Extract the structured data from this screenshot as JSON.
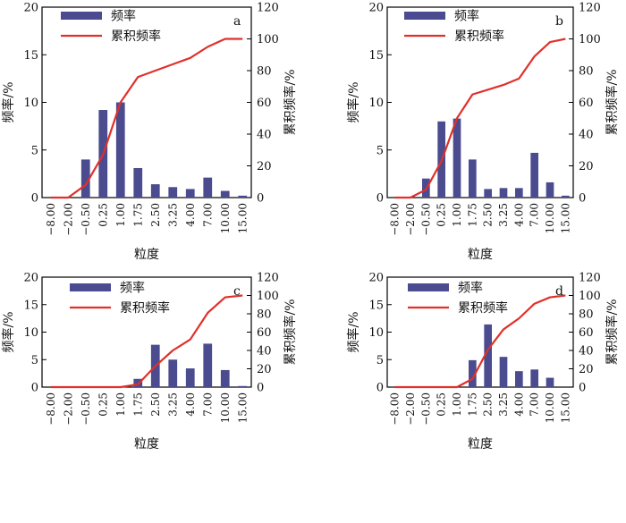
{
  "colors": {
    "bar": "#4b4b8f",
    "line": "#e0302a",
    "axis": "#000000"
  },
  "chart_data": [
    {
      "type": "bar",
      "panel_label": "a",
      "categories": [
        "−8.00",
        "−2.00",
        "−0.50",
        "0.25",
        "1.00",
        "1.75",
        "2.50",
        "3.25",
        "4.00",
        "7.00",
        "10.00",
        "15.00"
      ],
      "series": [
        {
          "name": "频率",
          "type": "bar",
          "axis": "left",
          "values": [
            0,
            0,
            4.0,
            9.2,
            10.0,
            3.1,
            1.4,
            1.1,
            0.9,
            2.1,
            0.7,
            0.2
          ]
        },
        {
          "name": "累积频率",
          "type": "line",
          "axis": "right",
          "values": [
            0,
            0,
            8,
            27,
            60,
            76,
            80,
            84,
            88,
            95,
            100,
            100
          ]
        }
      ],
      "xlabel": "粒度",
      "ylabel": "频率/%",
      "y2label": "累积频率/%",
      "ylim": [
        0,
        20
      ],
      "yticks": [
        0,
        5,
        10,
        15,
        20
      ],
      "y2lim": [
        0,
        120
      ],
      "y2ticks": [
        0,
        20,
        40,
        60,
        80,
        100,
        120
      ],
      "legend": "top-left"
    },
    {
      "type": "bar",
      "panel_label": "b",
      "categories": [
        "−8.00",
        "−2.00",
        "−0.50",
        "0.25",
        "1.00",
        "1.75",
        "2.50",
        "3.25",
        "4.00",
        "7.00",
        "10.00",
        "15.00"
      ],
      "series": [
        {
          "name": "频率",
          "type": "bar",
          "axis": "left",
          "values": [
            0,
            0,
            2.0,
            8.0,
            8.3,
            4.0,
            0.9,
            1.0,
            1.0,
            4.7,
            1.6,
            0.2
          ]
        },
        {
          "name": "累积频率",
          "type": "line",
          "axis": "right",
          "values": [
            0,
            0,
            5,
            23,
            50,
            65,
            68,
            71,
            75,
            89,
            98,
            100
          ]
        }
      ],
      "xlabel": "粒度",
      "ylabel": "频率/%",
      "y2label": "累积频率/%",
      "ylim": [
        0,
        20
      ],
      "yticks": [
        0,
        5,
        10,
        15,
        20
      ],
      "y2lim": [
        0,
        120
      ],
      "y2ticks": [
        0,
        20,
        40,
        60,
        80,
        100,
        120
      ],
      "legend": "top-left"
    },
    {
      "type": "bar",
      "panel_label": "c",
      "categories": [
        "−8.00",
        "−2.00",
        "−0.50",
        "0.25",
        "1.00",
        "1.75",
        "2.50",
        "3.25",
        "4.00",
        "7.00",
        "10.00",
        "15.00"
      ],
      "series": [
        {
          "name": "频率",
          "type": "bar",
          "axis": "left",
          "values": [
            0,
            0,
            0,
            0,
            0,
            1.5,
            7.7,
            5.0,
            3.4,
            7.9,
            3.1,
            0.2
          ]
        },
        {
          "name": "累积频率",
          "type": "line",
          "axis": "right",
          "values": [
            0,
            0,
            0,
            0,
            0,
            3,
            23,
            40,
            52,
            81,
            98,
            100
          ]
        }
      ],
      "xlabel": "粒度",
      "ylabel": "频率/%",
      "y2label": "累积频率/%",
      "ylim": [
        0,
        20
      ],
      "yticks": [
        0,
        5,
        10,
        15,
        20
      ],
      "y2lim": [
        0,
        120
      ],
      "y2ticks": [
        0,
        20,
        40,
        60,
        80,
        100,
        120
      ],
      "legend": "top-center"
    },
    {
      "type": "bar",
      "panel_label": "d",
      "categories": [
        "−8.00",
        "−2.00",
        "−0.50",
        "0.25",
        "1.00",
        "1.75",
        "2.50",
        "3.25",
        "4.00",
        "7.00",
        "10.00",
        "15.00"
      ],
      "series": [
        {
          "name": "频率",
          "type": "bar",
          "axis": "left",
          "values": [
            0,
            0,
            0,
            0,
            0,
            4.9,
            11.4,
            5.5,
            2.9,
            3.2,
            1.7,
            0
          ]
        },
        {
          "name": "累积频率",
          "type": "line",
          "axis": "right",
          "values": [
            0,
            0,
            0,
            0,
            0,
            9,
            41,
            63,
            75,
            91,
            98,
            100
          ]
        }
      ],
      "xlabel": "粒度",
      "ylabel": "频率/%",
      "y2label": "累积频率/%",
      "ylim": [
        0,
        20
      ],
      "yticks": [
        0,
        5,
        10,
        15,
        20
      ],
      "y2lim": [
        0,
        120
      ],
      "y2ticks": [
        0,
        20,
        40,
        60,
        80,
        100,
        120
      ],
      "legend": "top-center"
    }
  ]
}
